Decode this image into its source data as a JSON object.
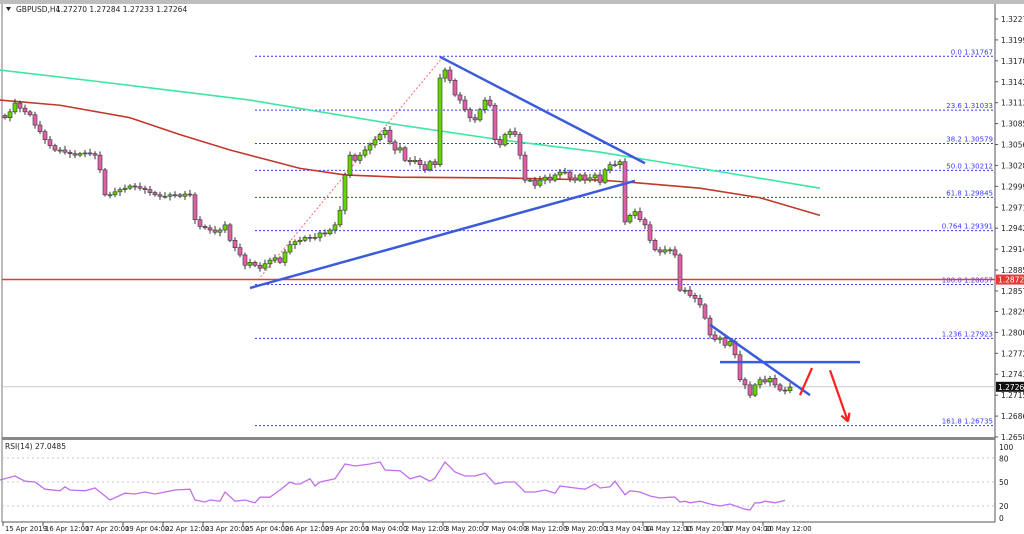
{
  "header": {
    "symbol": "GBPUSD,H4",
    "ohlc": "1.27270 1.27284 1.27233 1.27264"
  },
  "rsi_label": "RSI(14) 27.0485",
  "colors": {
    "bull": "#66d400",
    "bear": "#e060a8",
    "ma_fast": "#c0392b",
    "ma_slow": "#3ee6a0",
    "trendline": "#3b5bdb",
    "fib": "#3a3aff",
    "resistance": "#e03b3b",
    "arrow": "#ff2020",
    "rsi": "#c070f0"
  },
  "chart_data": [
    {
      "type": "candlestick",
      "title": "GBPUSD,H4",
      "x_tick_labels": [
        "15 Apr 2019",
        "16 Apr 12:00",
        "17 Apr 20:00",
        "19 Apr 04:00",
        "22 Apr 12:00",
        "23 Apr 20:00",
        "25 Apr 04:00",
        "26 Apr 12:00",
        "29 Apr 20:00",
        "1 May 04:00",
        "2 May 12:00",
        "3 May 20:00",
        "7 May 04:00",
        "8 May 12:00",
        "9 May 20:00",
        "13 May 04:00",
        "14 May 12:00",
        "15 May 20:00",
        "17 May 04:00",
        "20 May 12:00"
      ],
      "y_tick_labels": [
        "1.32275",
        "1.31990",
        "1.31705",
        "1.31420",
        "1.31135",
        "1.30850",
        "1.30565",
        "1.30280",
        "1.29995",
        "1.29710",
        "1.29425",
        "1.29140",
        "1.28855",
        "1.28570",
        "1.28290",
        "1.28005",
        "1.27720",
        "1.27435",
        "1.27150",
        "1.26865",
        "1.26580"
      ],
      "ylim": [
        1.2658,
        1.32275
      ],
      "closes": [
        1.3093,
        1.3101,
        1.3113,
        1.3106,
        1.3101,
        1.3097,
        1.3083,
        1.3074,
        1.3063,
        1.3055,
        1.3049,
        1.3049,
        1.3046,
        1.3044,
        1.3042,
        1.3044,
        1.3045,
        1.3044,
        1.3042,
        1.3022,
        1.2988,
        1.2988,
        1.2992,
        1.2995,
        1.2997,
        1.3,
        1.2999,
        1.2997,
        1.2995,
        1.2991,
        1.2988,
        1.2986,
        1.2986,
        1.2988,
        1.2988,
        1.2986,
        1.2989,
        1.2988,
        1.2954,
        1.2945,
        1.2943,
        1.294,
        1.2937,
        1.294,
        1.2947,
        1.2926,
        1.2916,
        1.2906,
        1.2892,
        1.2896,
        1.2892,
        1.2888,
        1.2894,
        1.2899,
        1.2902,
        1.2896,
        1.291,
        1.292,
        1.2924,
        1.2926,
        1.293,
        1.2929,
        1.293,
        1.2936,
        1.2935,
        1.294,
        1.2947,
        1.2967,
        1.3015,
        1.3042,
        1.3035,
        1.3042,
        1.3049,
        1.3056,
        1.3063,
        1.307,
        1.3076,
        1.306,
        1.3049,
        1.3052,
        1.3035,
        1.3033,
        1.3035,
        1.3029,
        1.3022,
        1.3033,
        1.3029,
        1.3147,
        1.3158,
        1.3144,
        1.3124,
        1.3117,
        1.3104,
        1.3093,
        1.309,
        1.3104,
        1.3117,
        1.311,
        1.3063,
        1.3056,
        1.307,
        1.3074,
        1.307,
        1.3042,
        1.3008,
        1.3008,
        1.3001,
        1.3008,
        1.3012,
        1.3008,
        1.3015,
        1.3019,
        1.3019,
        1.3011,
        1.3008,
        1.3015,
        1.3008,
        1.3011,
        1.3015,
        1.3005,
        1.3022,
        1.3029,
        1.3029,
        1.3033,
        1.2951,
        1.296,
        1.2965,
        1.2954,
        1.2947,
        1.2926,
        1.2913,
        1.291,
        1.2913,
        1.2913,
        1.2906,
        1.2858,
        1.2858,
        1.2851,
        1.2847,
        1.2838,
        1.282,
        1.2797,
        1.2791,
        1.2793,
        1.2783,
        1.2788,
        1.277,
        1.2736,
        1.2729,
        1.2715,
        1.2729,
        1.2736,
        1.2733,
        1.2738,
        1.2729,
        1.2722,
        1.2721,
        1.2726
      ],
      "moving_averages": [
        {
          "color_key": "ma_slow",
          "points": [
            [
              -1,
              1.3158
            ],
            [
              19,
              1.3142
            ],
            [
              49,
              1.3117
            ],
            [
              79,
              1.3083
            ],
            [
              99,
              1.3063
            ],
            [
              119,
              1.3046
            ],
            [
              139,
              1.3024
            ],
            [
              163,
              1.2997
            ]
          ]
        },
        {
          "color_key": "ma_fast",
          "points": [
            [
              -1,
              1.3117
            ],
            [
              11,
              1.311
            ],
            [
              25,
              1.3093
            ],
            [
              35,
              1.307
            ],
            [
              45,
              1.3049
            ],
            [
              59,
              1.3024
            ],
            [
              68,
              1.3015
            ],
            [
              79,
              1.3012
            ],
            [
              99,
              1.3011
            ],
            [
              119,
              1.3008
            ],
            [
              127,
              1.3004
            ],
            [
              139,
              1.2997
            ],
            [
              151,
              1.2984
            ],
            [
              163,
              1.296
            ]
          ]
        }
      ],
      "fibonacci_levels": [
        {
          "label": "0.0",
          "value": "1.31767"
        },
        {
          "label": "23.6",
          "value": "1.31033"
        },
        {
          "label": "38.2",
          "value": "1.30579"
        },
        {
          "label": "50.0",
          "value": "1.30212"
        },
        {
          "label": "61.8",
          "value": "1.29845"
        },
        {
          "label": "0.764",
          "value": "1.29391"
        },
        {
          "label": "100.0",
          "value": "1.28657"
        },
        {
          "label": "1.236",
          "value": "1.27923"
        },
        {
          "label": "161.8",
          "value": "1.26735"
        }
      ],
      "fib_swing": [
        [
          50.6,
          1.2872
        ],
        [
          87.6,
          1.3176
        ]
      ],
      "horizontal_level": {
        "value": "1.28725"
      },
      "current_price": {
        "value": "1.27264"
      },
      "trendlines": [
        [
          [
            49,
            1.2861
          ],
          [
            126,
            1.3007
          ]
        ],
        [
          [
            87,
            1.3176
          ],
          [
            128,
            1.3031
          ]
        ],
        [
          [
            141,
            1.2811
          ],
          [
            161,
            1.2715
          ]
        ],
        [
          [
            143,
            1.276
          ],
          [
            171,
            1.276
          ]
        ]
      ],
      "arrows": [
        [
          [
            159,
            1.2715
          ],
          [
            161.4,
            1.2752
          ]
        ],
        [
          [
            165,
            1.2749
          ],
          [
            168.6,
            1.2679
          ]
        ]
      ]
    },
    {
      "type": "line",
      "title": "RSI(14) 27.0485",
      "ylim": [
        0,
        100
      ],
      "y_tick_labels": [
        "100",
        "80",
        "50",
        "20",
        "0"
      ],
      "levels": [
        80,
        50,
        20
      ],
      "points": [
        [
          -1,
          52.5
        ],
        [
          2,
          57.5
        ],
        [
          4,
          51
        ],
        [
          6,
          50
        ],
        [
          8,
          41
        ],
        [
          11,
          39
        ],
        [
          12,
          44
        ],
        [
          13,
          40
        ],
        [
          16,
          39
        ],
        [
          18,
          42.5
        ],
        [
          21,
          27.5
        ],
        [
          24,
          36
        ],
        [
          26,
          35
        ],
        [
          28,
          37.5
        ],
        [
          30,
          35
        ],
        [
          32,
          37.5
        ],
        [
          34,
          40
        ],
        [
          37,
          41
        ],
        [
          38,
          27.5
        ],
        [
          40,
          25
        ],
        [
          41,
          27.5
        ],
        [
          43,
          26
        ],
        [
          44,
          37.5
        ],
        [
          46,
          26
        ],
        [
          48,
          27.5
        ],
        [
          50,
          24
        ],
        [
          51,
          31
        ],
        [
          53,
          31
        ],
        [
          55,
          40
        ],
        [
          57,
          50
        ],
        [
          58,
          47.5
        ],
        [
          59,
          47.5
        ],
        [
          61,
          54
        ],
        [
          62,
          45
        ],
        [
          63,
          50
        ],
        [
          66,
          54
        ],
        [
          68,
          72.5
        ],
        [
          70,
          70
        ],
        [
          73,
          72.5
        ],
        [
          75,
          75
        ],
        [
          76,
          65
        ],
        [
          79,
          64
        ],
        [
          81,
          54
        ],
        [
          83,
          57.5
        ],
        [
          85,
          51
        ],
        [
          86,
          55
        ],
        [
          88,
          75
        ],
        [
          90,
          62.5
        ],
        [
          92,
          57.5
        ],
        [
          94,
          57.5
        ],
        [
          96,
          61
        ],
        [
          98,
          47.5
        ],
        [
          100,
          50
        ],
        [
          102,
          50
        ],
        [
          104,
          37.5
        ],
        [
          106,
          37.5
        ],
        [
          108,
          40
        ],
        [
          110,
          36
        ],
        [
          111,
          45
        ],
        [
          114,
          42.5
        ],
        [
          116,
          41
        ],
        [
          118,
          47.5
        ],
        [
          119,
          42.5
        ],
        [
          121,
          44
        ],
        [
          122,
          51
        ],
        [
          124,
          34
        ],
        [
          125,
          39
        ],
        [
          127,
          37.5
        ],
        [
          129,
          32.5
        ],
        [
          131,
          30
        ],
        [
          133,
          31
        ],
        [
          134,
          31
        ],
        [
          135,
          25
        ],
        [
          136,
          26
        ],
        [
          137,
          24
        ],
        [
          139,
          26
        ],
        [
          141,
          22.5
        ],
        [
          143,
          20
        ],
        [
          145,
          22.5
        ],
        [
          148,
          16
        ],
        [
          149,
          15
        ],
        [
          150,
          24
        ],
        [
          151,
          24
        ],
        [
          152,
          26
        ],
        [
          154,
          24
        ],
        [
          156,
          27
        ]
      ]
    }
  ]
}
